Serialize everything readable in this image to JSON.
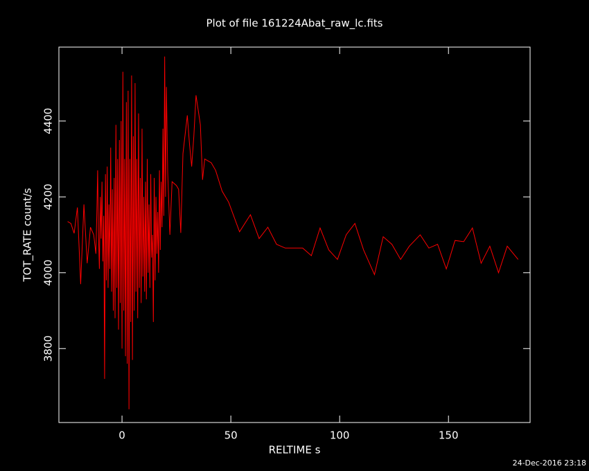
{
  "chart_data": {
    "type": "line",
    "title": "Plot of file 161224Abat_raw_lc.fits",
    "x_label": "RELTIME  s",
    "y_label": "TOT_RATE  count/s",
    "timestamp": "24-Dec-2016 23:18",
    "color": "#ff0000",
    "xlim": [
      -29,
      187.5
    ],
    "ylim": [
      3605,
      4595
    ],
    "xticks": [
      0,
      50,
      100,
      150
    ],
    "yticks": [
      3800,
      4000,
      4200,
      4400
    ],
    "x": [
      -25,
      -23.5,
      -22,
      -20.5,
      -19,
      -17.5,
      -16,
      -14.5,
      -13,
      -12.0,
      -11.6,
      -11.2,
      -10.8,
      -10.4,
      -10.0,
      -9.6,
      -9.2,
      -8.8,
      -8.4,
      -8.0,
      -7.6,
      -7.2,
      -6.8,
      -6.4,
      -6.0,
      -5.6,
      -5.2,
      -4.8,
      -4.4,
      -4.0,
      -3.6,
      -3.2,
      -2.8,
      -2.4,
      -2.0,
      -1.6,
      -1.2,
      -0.8,
      -0.4,
      0.0,
      0.4,
      0.8,
      1.2,
      1.6,
      2.0,
      2.4,
      2.8,
      3.2,
      3.6,
      4.0,
      4.4,
      4.8,
      5.2,
      5.6,
      6.0,
      6.4,
      6.8,
      7.2,
      7.6,
      8.0,
      8.4,
      8.8,
      9.2,
      9.6,
      10.0,
      10.4,
      10.8,
      11.2,
      11.6,
      12.0,
      12.4,
      12.8,
      13.2,
      13.6,
      14.0,
      14.4,
      14.8,
      15.2,
      15.6,
      16.0,
      16.4,
      16.8,
      17.2,
      17.6,
      18.0,
      18.4,
      18.8,
      19.2,
      19.6,
      20.0,
      20.4,
      21,
      22,
      23,
      25,
      26,
      27,
      28,
      30,
      31,
      32,
      33,
      34,
      36,
      37,
      38,
      41,
      43,
      46,
      49,
      54,
      59,
      63,
      67,
      71,
      75,
      79,
      83,
      87,
      91,
      95,
      99,
      103,
      107,
      111,
      116,
      120,
      124,
      128,
      132,
      137,
      141,
      145,
      149,
      153,
      157,
      161,
      165,
      169,
      173,
      177,
      182
    ],
    "values": [
      4135,
      4130,
      4104,
      4172,
      3970,
      4180,
      4025,
      4120,
      4100,
      4050,
      4150,
      4270,
      4100,
      4010,
      4200,
      4090,
      4240,
      4030,
      4150,
      3720,
      4260,
      3980,
      4280,
      3960,
      4180,
      4010,
      4330,
      3950,
      4220,
      3900,
      4250,
      3880,
      4390,
      3960,
      4300,
      3850,
      4350,
      3920,
      4400,
      3800,
      4530,
      3900,
      4300,
      3780,
      4450,
      3760,
      4480,
      3640,
      4300,
      3870,
      4520,
      3770,
      4360,
      3900,
      4500,
      3950,
      4300,
      3880,
      4420,
      3960,
      4250,
      3920,
      4380,
      3990,
      4200,
      3950,
      4240,
      3930,
      4300,
      4000,
      4180,
      3960,
      4260,
      4040,
      4100,
      3870,
      4250,
      3980,
      4200,
      4050,
      4160,
      4000,
      4270,
      4060,
      4240,
      4120,
      4380,
      4150,
      4570,
      4200,
      4490,
      4263,
      4100,
      4240,
      4230,
      4220,
      4105,
      4314,
      4415,
      4340,
      4280,
      4360,
      4468,
      4390,
      4245,
      4300,
      4290,
      4270,
      4215,
      4186,
      4108,
      4153,
      4090,
      4120,
      4075,
      4065,
      4065,
      4065,
      4045,
      4118,
      4060,
      4035,
      4100,
      4130,
      4060,
      3995,
      4095,
      4075,
      4035,
      4070,
      4100,
      4065,
      4075,
      4010,
      4085,
      4082,
      4118,
      4025,
      4070,
      4000,
      4070,
      4035
    ]
  }
}
